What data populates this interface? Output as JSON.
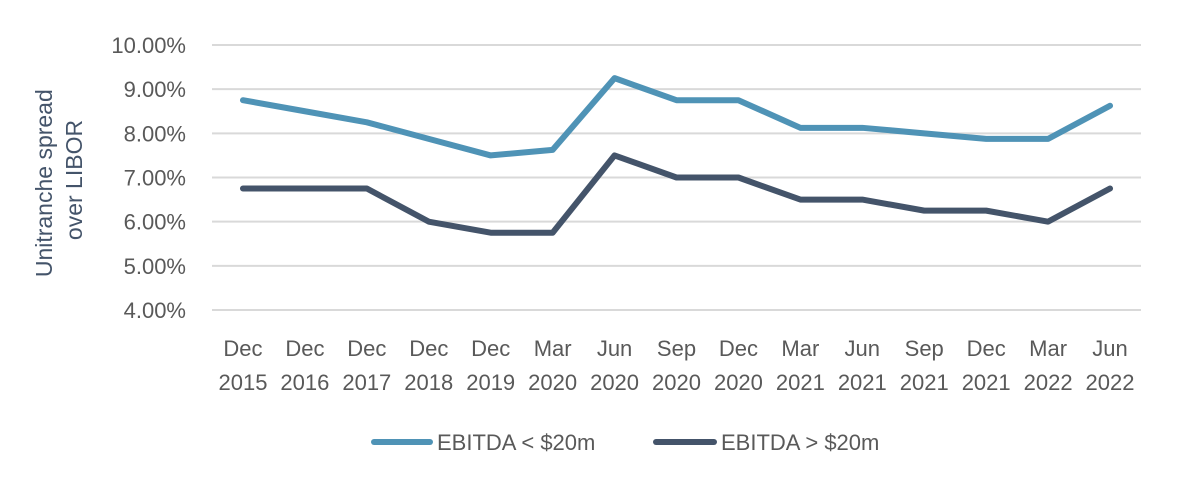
{
  "chart_data": {
    "type": "line",
    "title": "",
    "xlabel": "",
    "ylabel": [
      "Unitranche spread",
      "over LIBOR"
    ],
    "ylim": [
      4.0,
      10.0
    ],
    "y_ticks": [
      "10.00%",
      "9.00%",
      "8.00%",
      "7.00%",
      "6.00%",
      "5.00%",
      "4.00%"
    ],
    "y_tick_values": [
      10,
      9,
      8,
      7,
      6,
      5,
      4
    ],
    "grid": true,
    "legend_position": "bottom",
    "categories": [
      [
        "Dec",
        "2015"
      ],
      [
        "Dec",
        "2016"
      ],
      [
        "Dec",
        "2017"
      ],
      [
        "Dec",
        "2018"
      ],
      [
        "Dec",
        "2019"
      ],
      [
        "Mar",
        "2020"
      ],
      [
        "Jun",
        "2020"
      ],
      [
        "Sep",
        "2020"
      ],
      [
        "Dec",
        "2020"
      ],
      [
        "Mar",
        "2021"
      ],
      [
        "Jun",
        "2021"
      ],
      [
        "Sep",
        "2021"
      ],
      [
        "Dec",
        "2021"
      ],
      [
        "Mar",
        "2022"
      ],
      [
        "Jun",
        "2022"
      ]
    ],
    "series": [
      {
        "name": "EBITDA < $20m",
        "color": "#4f93b6",
        "values": [
          8.75,
          8.5,
          8.25,
          7.875,
          7.5,
          7.625,
          9.25,
          8.75,
          8.75,
          8.125,
          8.125,
          8.0,
          7.875,
          7.875,
          8.625
        ]
      },
      {
        "name": "EBITDA > $20m",
        "color": "#44546a",
        "values": [
          6.75,
          6.75,
          6.75,
          6.0,
          5.75,
          5.75,
          7.5,
          7.0,
          7.0,
          6.5,
          6.5,
          6.25,
          6.25,
          6.0,
          6.75
        ]
      }
    ]
  }
}
